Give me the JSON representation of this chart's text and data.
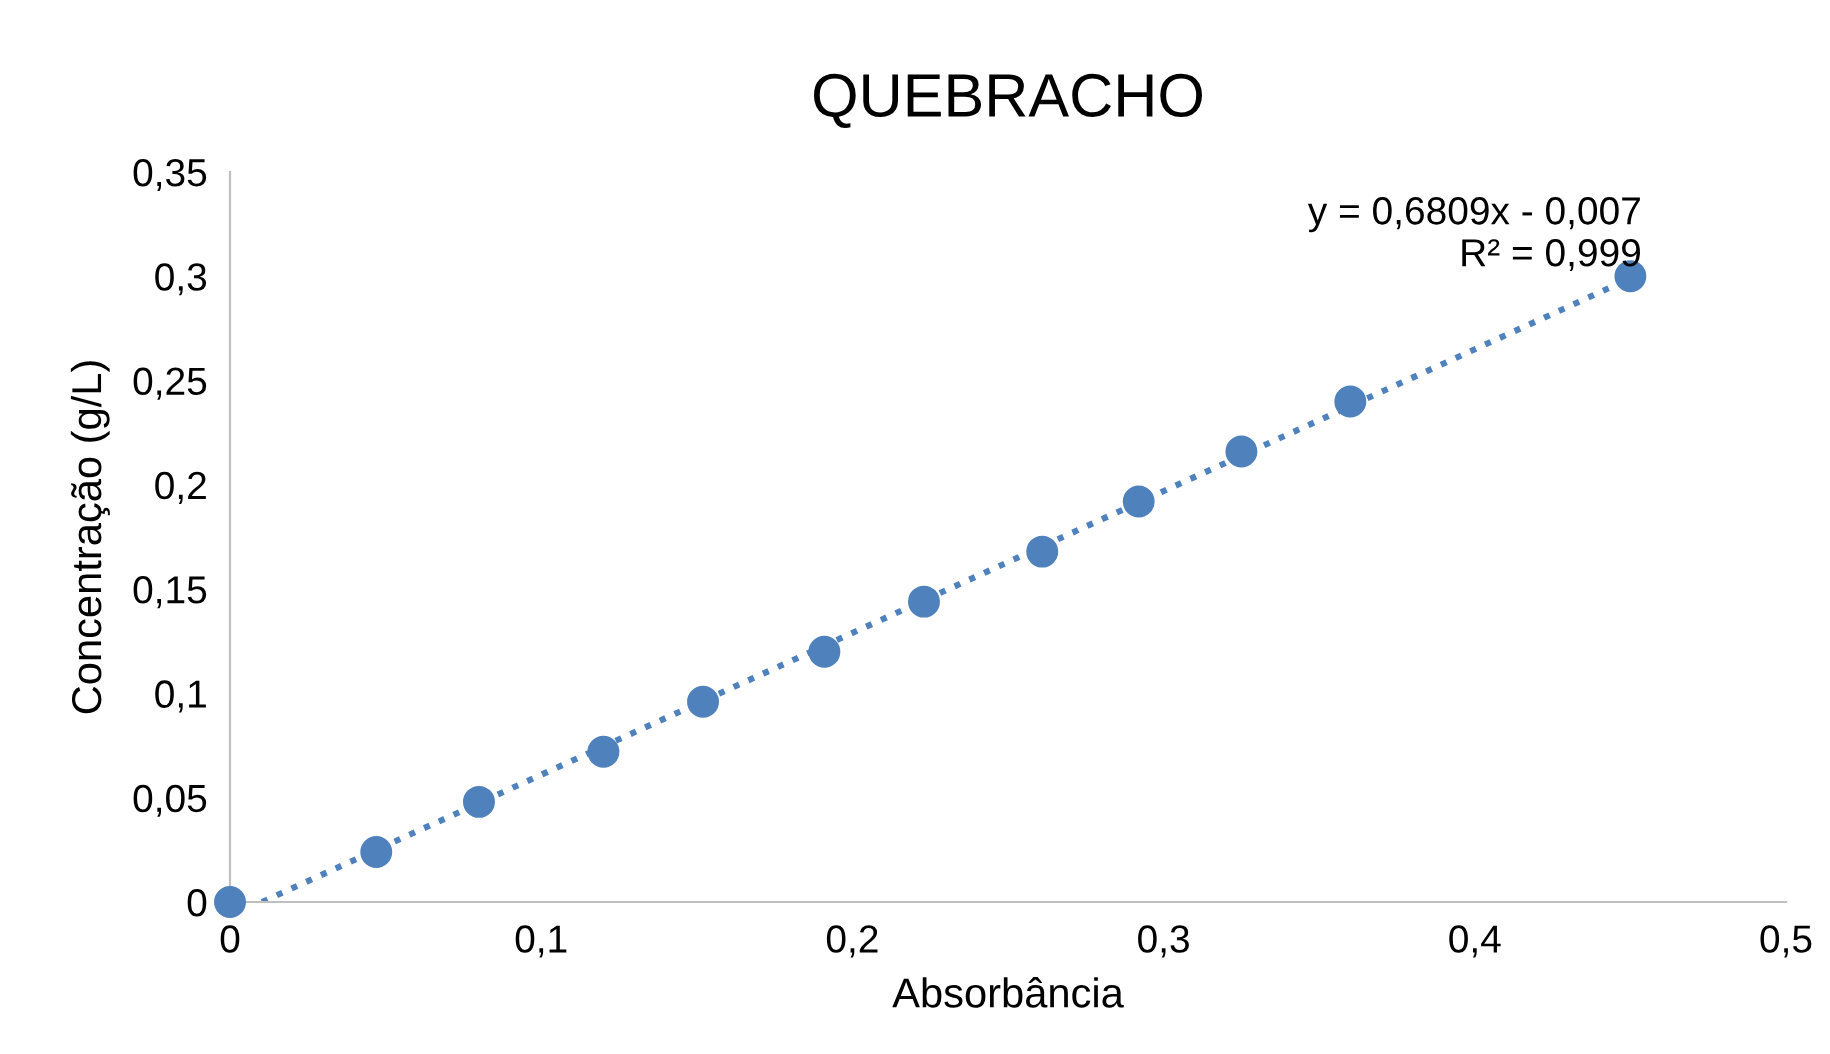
{
  "chart_data": {
    "type": "scatter",
    "title": "QUEBRACHO",
    "xlabel": "Absorbância",
    "ylabel": "Concentração (g/L)",
    "x": [
      0,
      0.047,
      0.08,
      0.12,
      0.152,
      0.191,
      0.223,
      0.261,
      0.292,
      0.325,
      0.36,
      0.45
    ],
    "series": [
      {
        "type": "scatter",
        "color": "#4f81bd",
        "marker": "circle",
        "values": [
          0,
          0.024,
          0.048,
          0.072,
          0.096,
          0.12,
          0.144,
          0.168,
          0.192,
          0.216,
          0.24,
          0.3
        ]
      },
      {
        "type": "line",
        "color": "#4f81bd",
        "line_style": "dotted",
        "marker": "none",
        "x": [
          0.0103,
          0.45
        ],
        "values": [
          0,
          0.299
        ]
      }
    ],
    "annotations": [
      "y = 0,6809x - 0,007\nR² = 0,999"
    ],
    "xlim": [
      0,
      0.5
    ],
    "ylim": [
      0,
      0.35
    ],
    "xticks": [
      0,
      {
        "value": 0.1,
        "label": "0,1"
      },
      {
        "value": 0.2,
        "label": "0,2"
      },
      {
        "value": 0.3,
        "label": "0,3"
      },
      {
        "value": 0.4,
        "label": "0,4"
      },
      {
        "value": 0.5,
        "label": "0,5"
      }
    ],
    "yticks": [
      0,
      {
        "value": 0.05,
        "label": "0,05"
      },
      {
        "value": 0.1,
        "label": "0,1"
      },
      {
        "value": 0.15,
        "label": "0,15"
      },
      {
        "value": 0.2,
        "label": "0,2"
      },
      {
        "value": 0.25,
        "label": "0,25"
      },
      {
        "value": 0.3,
        "label": "0,3"
      },
      {
        "value": 0.35,
        "label": "0,35"
      }
    ],
    "grid": false,
    "legend": false
  }
}
